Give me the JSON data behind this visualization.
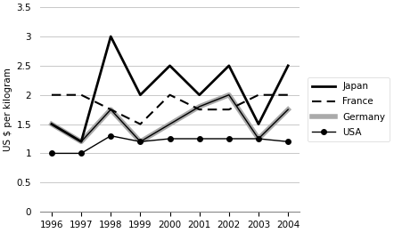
{
  "years": [
    1996,
    1997,
    1998,
    1999,
    2000,
    2001,
    2002,
    2003,
    2004
  ],
  "japan": [
    1.5,
    1.2,
    3.0,
    2.0,
    2.5,
    2.0,
    2.5,
    1.5,
    2.5
  ],
  "france": [
    2.0,
    2.0,
    1.75,
    1.5,
    2.0,
    1.75,
    1.75,
    2.0,
    2.0
  ],
  "germany": [
    1.5,
    1.2,
    1.75,
    1.2,
    1.5,
    1.8,
    2.0,
    1.25,
    1.75
  ],
  "usa": [
    1.0,
    1.0,
    1.3,
    1.2,
    1.25,
    1.25,
    1.25,
    1.25,
    1.2
  ],
  "ylabel": "US $ per kilogram",
  "ylim": [
    0,
    3.5
  ],
  "yticks": [
    0,
    0.5,
    1.0,
    1.5,
    2.0,
    2.5,
    3.0,
    3.5
  ],
  "background_color": "#ffffff",
  "grid_color": "#c8c8c8"
}
